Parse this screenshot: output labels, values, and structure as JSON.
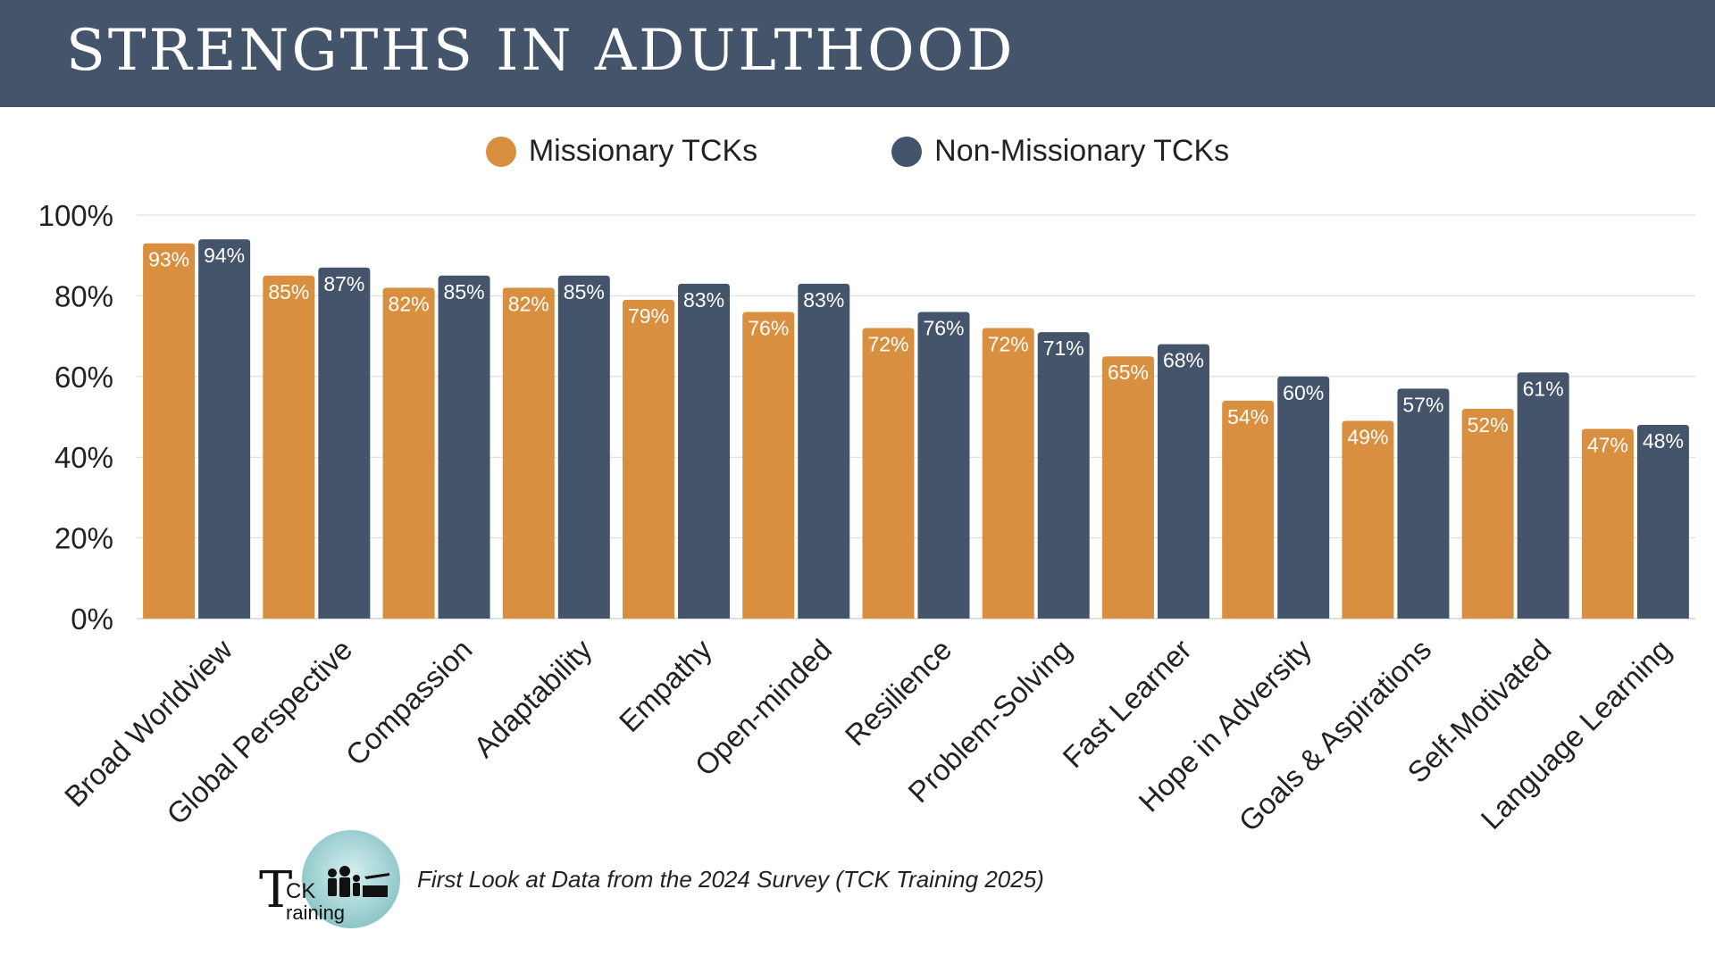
{
  "title": "STRENGTHS IN ADULTHOOD",
  "legend": {
    "series_1": "Missionary TCKs",
    "series_2": "Non-Missionary TCKs"
  },
  "colors": {
    "header": "#44546a",
    "series_1": "#d88f3f",
    "series_2": "#44546a",
    "grid": "#d9d9d9"
  },
  "footer": {
    "logo_t": "T",
    "logo_ck": "CK",
    "logo_training": "raining",
    "source": "First Look at Data from the 2024 Survey (TCK Training 2025)"
  },
  "chart_data": {
    "type": "bar",
    "categories": [
      "Broad Worldview",
      "Global Perspective",
      "Compassion",
      "Adaptability",
      "Empathy",
      "Open-minded",
      "Resilience",
      "Problem-Solving",
      "Fast Learner",
      "Hope in Adversity",
      "Goals & Aspirations",
      "Self-Motivated",
      "Language Learning"
    ],
    "series": [
      {
        "name": "Missionary TCKs",
        "values": [
          93,
          85,
          82,
          82,
          79,
          76,
          72,
          72,
          65,
          54,
          49,
          52,
          47
        ]
      },
      {
        "name": "Non-Missionary TCKs",
        "values": [
          94,
          87,
          85,
          85,
          83,
          83,
          76,
          71,
          68,
          60,
          57,
          61,
          48
        ]
      }
    ],
    "value_suffix": "%",
    "ylim": [
      0,
      100
    ],
    "yticks": [
      0,
      20,
      40,
      60,
      80,
      100
    ],
    "ytick_labels": [
      "0%",
      "20%",
      "40%",
      "60%",
      "80%",
      "100%"
    ],
    "grid": true,
    "legend_position": "top-center"
  }
}
